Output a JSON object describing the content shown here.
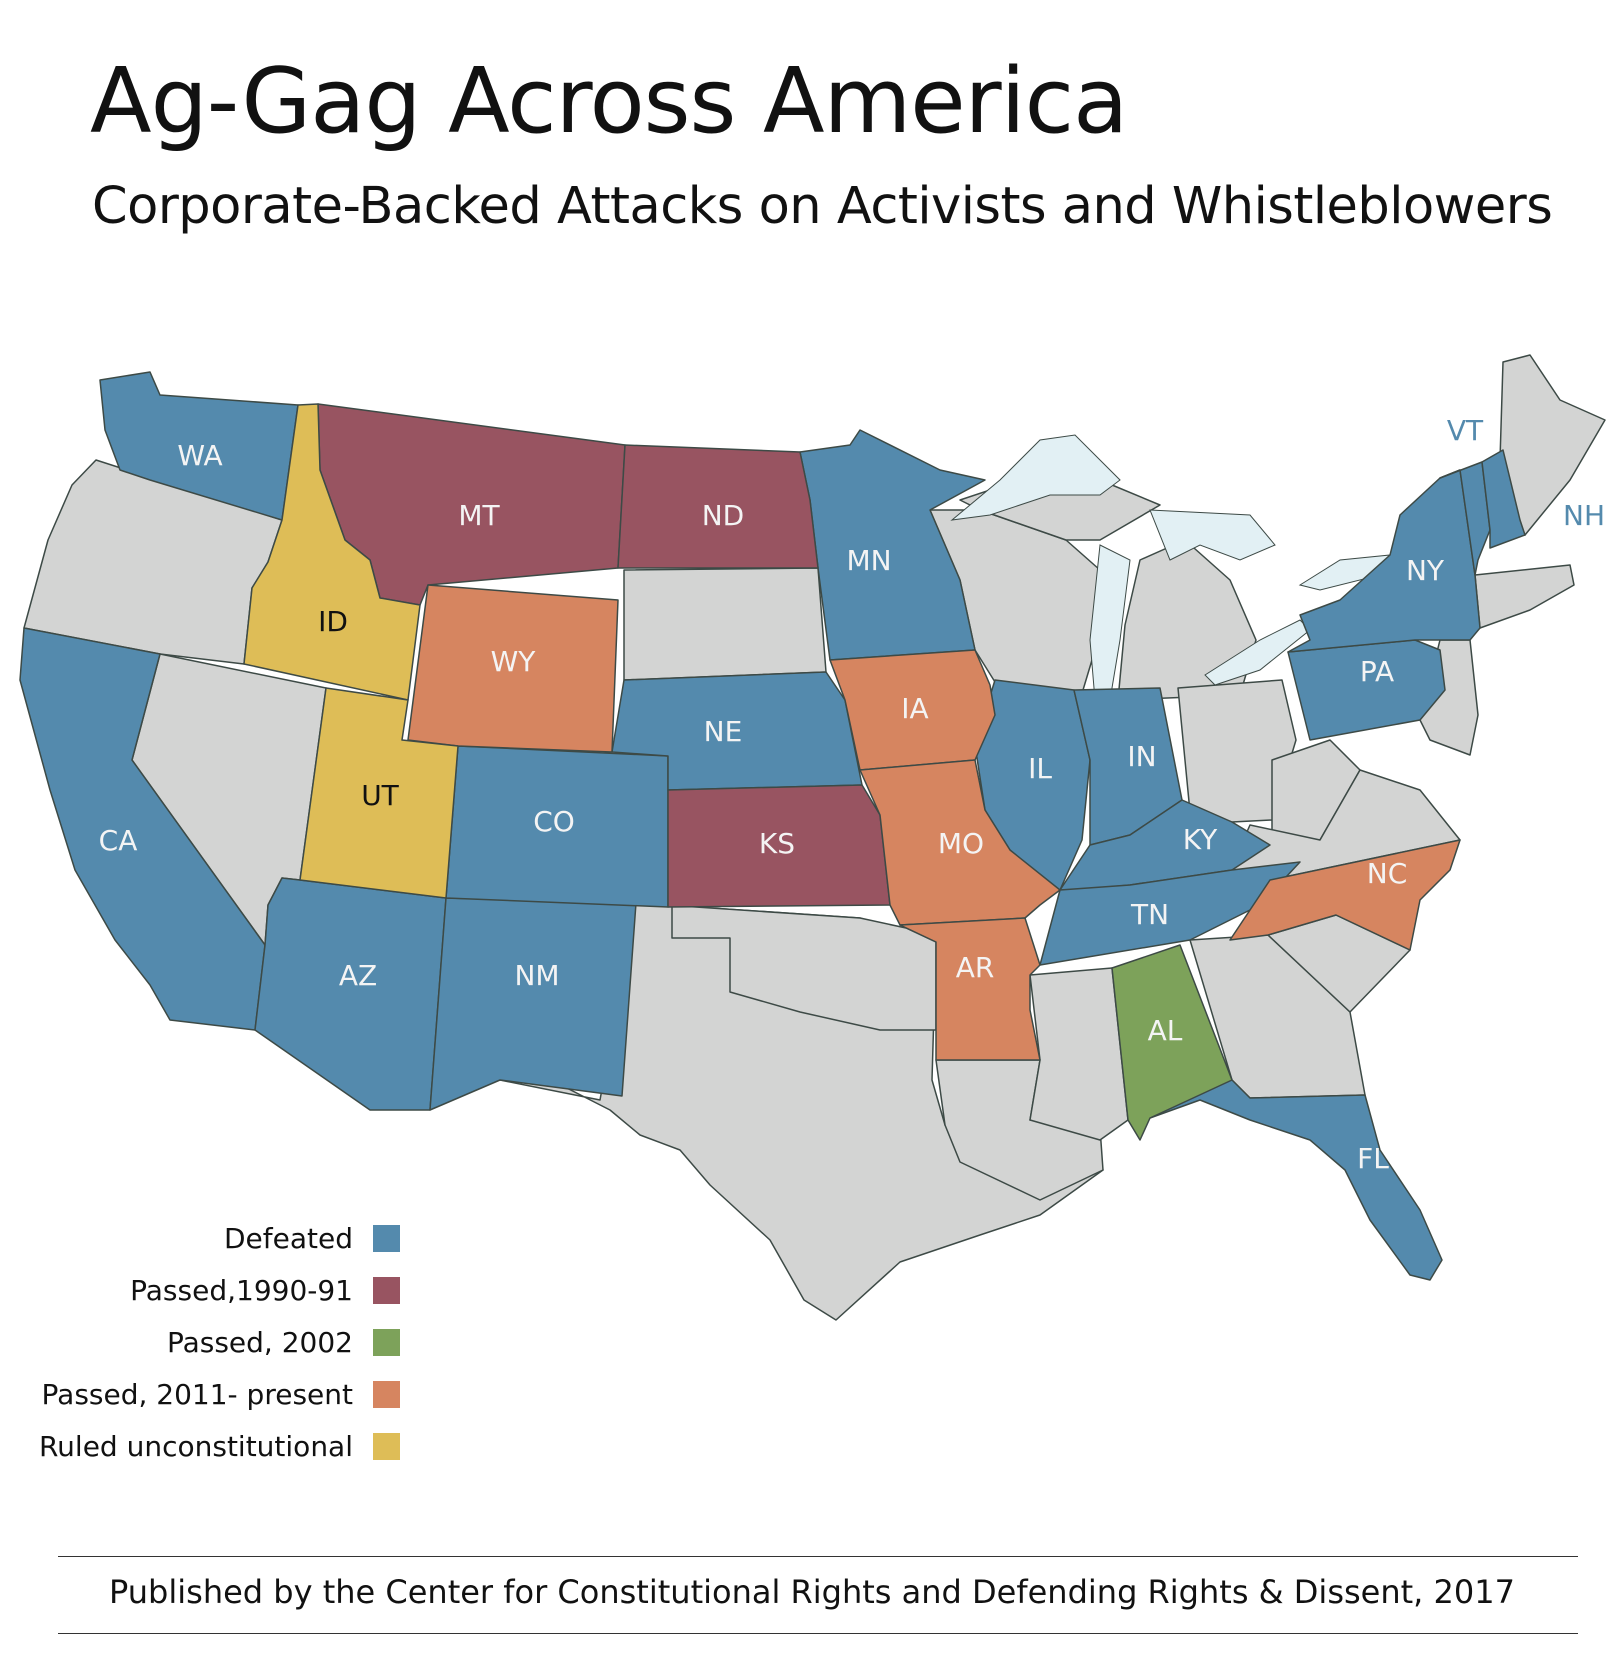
{
  "header": {
    "title": "Ag-Gag Across America",
    "subtitle": "Corporate-Backed Attacks on Activists and Whistleblowers"
  },
  "colors": {
    "defeated": "#548aad",
    "passed_1990_91": "#985461",
    "passed_2002": "#7da25a",
    "passed_2011_present": "#d68560",
    "ruled_unconstitutional": "#debd57",
    "no_status": "#d3d4d3",
    "lakes": "#e2f0f4",
    "border": "#3d4a46"
  },
  "legend": [
    {
      "label": "Defeated",
      "status": "defeated"
    },
    {
      "label": "Passed,1990-91",
      "status": "passed_1990_91"
    },
    {
      "label": "Passed, 2002",
      "status": "passed_2002"
    },
    {
      "label": "Passed, 2011- present",
      "status": "passed_2011_present"
    },
    {
      "label": "Ruled unconstitutional",
      "status": "ruled_unconstitutional"
    }
  ],
  "states": [
    {
      "abbr": "WA",
      "status": "defeated"
    },
    {
      "abbr": "CA",
      "status": "defeated"
    },
    {
      "abbr": "AZ",
      "status": "defeated"
    },
    {
      "abbr": "NM",
      "status": "defeated"
    },
    {
      "abbr": "CO",
      "status": "defeated"
    },
    {
      "abbr": "NE",
      "status": "defeated"
    },
    {
      "abbr": "MN",
      "status": "defeated"
    },
    {
      "abbr": "IL",
      "status": "defeated"
    },
    {
      "abbr": "IN",
      "status": "defeated"
    },
    {
      "abbr": "KY",
      "status": "defeated"
    },
    {
      "abbr": "TN",
      "status": "defeated"
    },
    {
      "abbr": "FL",
      "status": "defeated"
    },
    {
      "abbr": "PA",
      "status": "defeated"
    },
    {
      "abbr": "NY",
      "status": "defeated"
    },
    {
      "abbr": "VT",
      "status": "defeated"
    },
    {
      "abbr": "NH",
      "status": "defeated"
    },
    {
      "abbr": "MT",
      "status": "passed_1990_91"
    },
    {
      "abbr": "ND",
      "status": "passed_1990_91"
    },
    {
      "abbr": "KS",
      "status": "passed_1990_91"
    },
    {
      "abbr": "AL",
      "status": "passed_2002"
    },
    {
      "abbr": "WY",
      "status": "passed_2011_present"
    },
    {
      "abbr": "IA",
      "status": "passed_2011_present"
    },
    {
      "abbr": "MO",
      "status": "passed_2011_present"
    },
    {
      "abbr": "AR",
      "status": "passed_2011_present"
    },
    {
      "abbr": "NC",
      "status": "passed_2011_present"
    },
    {
      "abbr": "ID",
      "status": "ruled_unconstitutional"
    },
    {
      "abbr": "UT",
      "status": "ruled_unconstitutional"
    }
  ],
  "footer": "Published by the Center for Constitutional Rights and Defending Rights & Dissent, 2017"
}
